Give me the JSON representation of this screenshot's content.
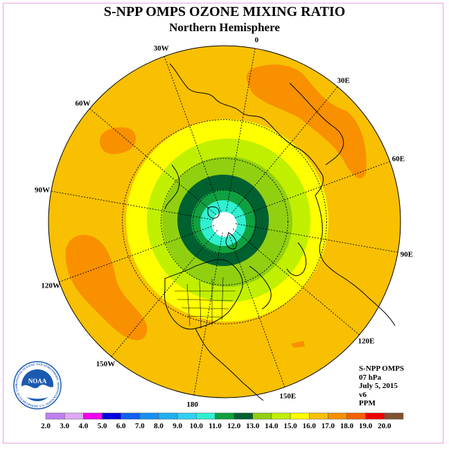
{
  "title": "S-NPP OMPS OZONE MIXING RATIO",
  "subtitle": "Northern Hemisphere",
  "longitude_labels": [
    {
      "label": "90E",
      "lon": 90
    },
    {
      "label": "60E",
      "lon": 60
    },
    {
      "label": "30E",
      "lon": 30
    },
    {
      "label": "0",
      "lon": 0
    },
    {
      "label": "30W",
      "lon": -30
    },
    {
      "label": "60W",
      "lon": -60
    },
    {
      "label": "90W",
      "lon": -90
    },
    {
      "label": "120W",
      "lon": -120
    },
    {
      "label": "150W",
      "lon": -150
    },
    {
      "label": "180",
      "lon": 180
    },
    {
      "label": "150E",
      "lon": 150
    },
    {
      "label": "120E",
      "lon": 120
    }
  ],
  "info": {
    "instrument": "S-NPP OMPS",
    "level": "07 hPa",
    "date": "July 5, 2015",
    "version": "v6",
    "units": "PPM"
  },
  "logo": {
    "text": "NOAA",
    "ring_text": "NATIONAL OCEANIC AND ATMOSPHERIC ADMINISTRATION • U.S. DEPARTMENT OF COMMERCE"
  },
  "colorbar": {
    "ticks": [
      "2.0",
      "3.0",
      "4.0",
      "5.0",
      "6.0",
      "7.0",
      "8.0",
      "9.0",
      "10.0",
      "11.0",
      "12.0",
      "13.0",
      "14.0",
      "15.0",
      "16.0",
      "17.0",
      "18.0",
      "19.0",
      "20.0"
    ],
    "colors": [
      "#c080f0",
      "#e0a8f8",
      "#f000f0",
      "#0000e0",
      "#1060f0",
      "#1890f0",
      "#20b0f0",
      "#30d0f8",
      "#30f0d0",
      "#10a040",
      "#006030",
      "#90d010",
      "#c0f000",
      "#ffff00",
      "#f8c000",
      "#f89000",
      "#f86000",
      "#f00000",
      "#805030"
    ]
  },
  "field_colors": {
    "ocean_disk": "#f8c000",
    "warm_patches": "#f89000",
    "band_yellow": "#ffff00",
    "band_lime": "#c0f000",
    "band_green": "#90d010",
    "band_darkgreen": "#006030",
    "band_green2": "#10a040",
    "band_cyan": "#30f0d0",
    "pole": "#ffffff"
  }
}
